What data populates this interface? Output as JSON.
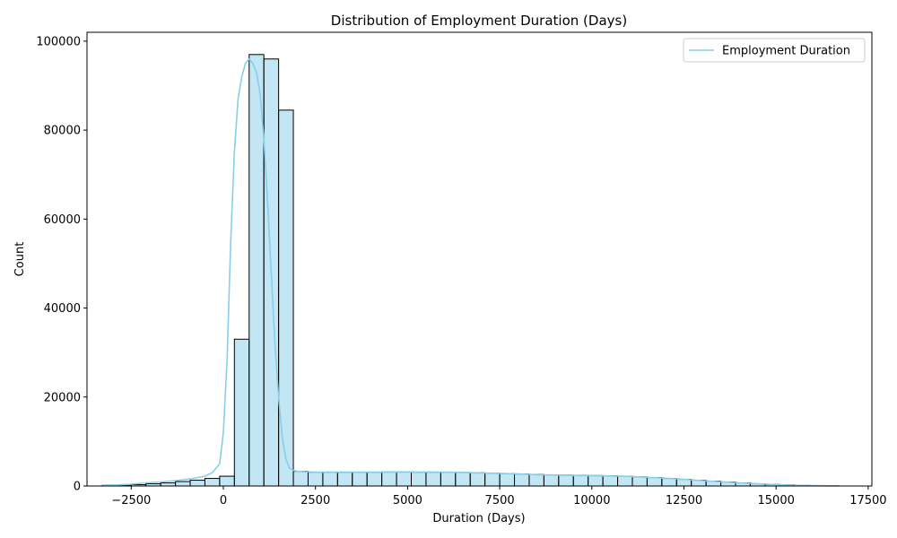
{
  "chart_data": {
    "type": "histogram",
    "title": "Distribution of Employment Duration (Days)",
    "xlabel": "Duration (Days)",
    "ylabel": "Count",
    "xlim": [
      -3700,
      17600
    ],
    "ylim": [
      0,
      102000
    ],
    "xticks": [
      -2500,
      0,
      2500,
      5000,
      7500,
      10000,
      12500,
      15000,
      17500
    ],
    "xtick_labels": [
      "−2500",
      "0",
      "2500",
      "5000",
      "7500",
      "10000",
      "12500",
      "15000",
      "17500"
    ],
    "yticks": [
      0,
      20000,
      40000,
      60000,
      80000,
      100000
    ],
    "ytick_labels": [
      "0",
      "20000",
      "40000",
      "60000",
      "80000",
      "100000"
    ],
    "grid": false,
    "legend": {
      "position": "top-right",
      "entries": [
        "Employment Duration"
      ]
    },
    "colors": {
      "bar_fill": "#87ceeb",
      "bar_edge": "#000000",
      "kde_line": "#87ceeb"
    },
    "bins": {
      "edges": [
        -3300,
        -2900,
        -2500,
        -2100,
        -1700,
        -1300,
        -900,
        -500,
        -100,
        300,
        700,
        1100,
        1500,
        1900,
        2300,
        2700,
        3100,
        3500,
        3900,
        4300,
        4700,
        5100,
        5500,
        5900,
        6300,
        6700,
        7100,
        7500,
        7900,
        8300,
        8700,
        9100,
        9500,
        9900,
        10300,
        10700,
        11100,
        11500,
        11900,
        12300,
        12700,
        13100,
        13500,
        13900,
        14300,
        14700,
        15100,
        15500,
        15900,
        16300,
        16700
      ],
      "counts": [
        100,
        150,
        300,
        500,
        700,
        1000,
        1300,
        1700,
        2200,
        33000,
        97000,
        96000,
        84500,
        3300,
        3100,
        3100,
        3100,
        3100,
        3100,
        3150,
        3150,
        3100,
        3100,
        3100,
        3050,
        3000,
        2900,
        2800,
        2700,
        2600,
        2500,
        2450,
        2400,
        2350,
        2300,
        2200,
        2050,
        1900,
        1700,
        1500,
        1300,
        1100,
        900,
        700,
        500,
        350,
        250,
        150,
        80,
        40
      ]
    },
    "series": [
      {
        "name": "Employment Duration",
        "type": "line",
        "x": [
          -3300,
          -2900,
          -2500,
          -2100,
          -1700,
          -1300,
          -900,
          -500,
          -300,
          -100,
          0,
          100,
          200,
          300,
          400,
          500,
          600,
          700,
          800,
          900,
          1000,
          1100,
          1200,
          1300,
          1400,
          1500,
          1600,
          1700,
          1800,
          1900,
          2000,
          2200,
          2500,
          3000,
          3500,
          4000,
          4500,
          5000,
          5500,
          6000,
          6500,
          7000,
          7500,
          8000,
          8500,
          9000,
          9500,
          10000,
          10500,
          11000,
          11500,
          12000,
          12500,
          13000,
          13500,
          14000,
          14500,
          15000,
          15500,
          16000,
          16700
        ],
        "y": [
          200,
          250,
          400,
          700,
          900,
          1200,
          1600,
          2200,
          3000,
          5000,
          12000,
          28000,
          55000,
          75000,
          87000,
          92000,
          95000,
          96000,
          95000,
          93000,
          88000,
          78000,
          64000,
          48000,
          32000,
          20000,
          11000,
          6000,
          4000,
          3500,
          3300,
          3200,
          3100,
          3100,
          3100,
          3100,
          3100,
          3150,
          3150,
          3100,
          3050,
          2950,
          2850,
          2700,
          2550,
          2450,
          2350,
          2300,
          2250,
          2150,
          1950,
          1750,
          1500,
          1200,
          950,
          700,
          500,
          300,
          150,
          80,
          30
        ]
      }
    ]
  }
}
